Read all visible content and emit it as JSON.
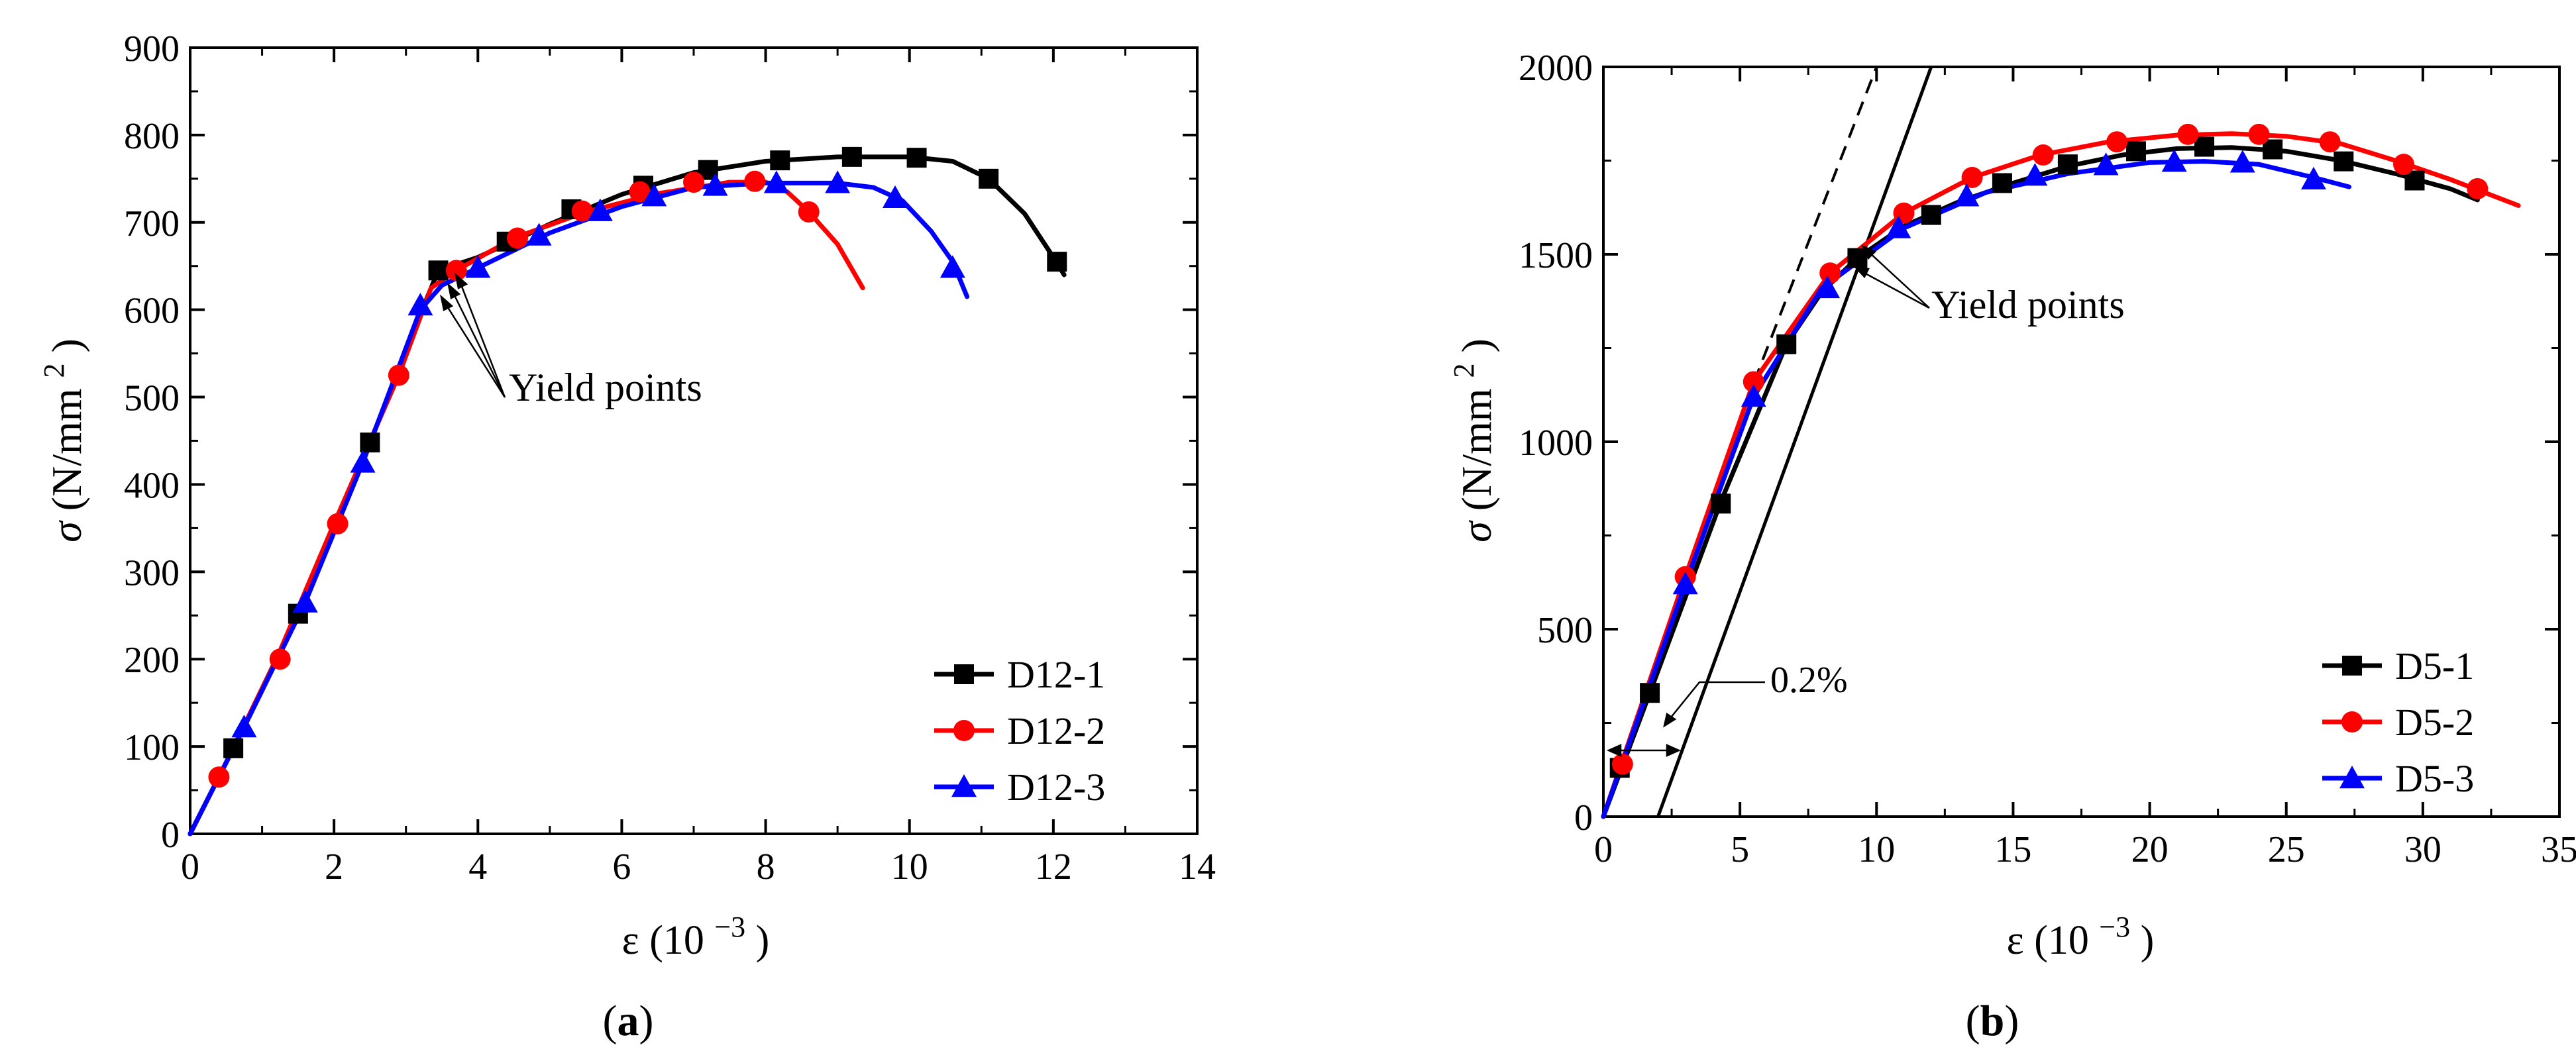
{
  "figure_labels": {
    "a_open": "(",
    "a_letter": "a",
    "a_close": ")",
    "b_open": "(",
    "b_letter": "b",
    "b_close": ")"
  },
  "colors": {
    "black": "#000000",
    "red": "#ff0000",
    "blue": "#0000ff"
  },
  "chart_data": [
    {
      "id": "a",
      "type": "line",
      "xlabel_prefix": "ε (10",
      "xlabel_exp": "−3",
      "xlabel_suffix": ")",
      "ylabel_sym": "σ",
      "ylabel_unit": "(N/mm",
      "ylabel_exp": "2",
      "ylabel_close": ")",
      "xlim": [
        0,
        14
      ],
      "ylim": [
        0,
        900
      ],
      "xticks": [
        0,
        2,
        4,
        6,
        8,
        10,
        12,
        14
      ],
      "yticks": [
        0,
        100,
        200,
        300,
        400,
        500,
        600,
        700,
        800,
        900
      ],
      "annotation": "Yield points",
      "legend_position": "bottom-right",
      "series": [
        {
          "name": "D12-1",
          "color": "#000000",
          "marker": "square",
          "curve": [
            [
              0,
              0
            ],
            [
              0.6,
              98
            ],
            [
              1.5,
              252
            ],
            [
              2.5,
              448
            ],
            [
              3.3,
              615
            ],
            [
              3.45,
              645
            ],
            [
              4,
              660
            ],
            [
              5,
              698
            ],
            [
              6,
              732
            ],
            [
              7,
              757
            ],
            [
              8,
              770
            ],
            [
              9,
              775
            ],
            [
              10,
              775
            ],
            [
              10.6,
              770
            ],
            [
              11.1,
              750
            ],
            [
              11.6,
              710
            ],
            [
              12,
              660
            ],
            [
              12.15,
              640
            ]
          ],
          "markers": [
            [
              0.6,
              98
            ],
            [
              1.5,
              252
            ],
            [
              2.5,
              448
            ],
            [
              3.45,
              645
            ],
            [
              4.4,
              678
            ],
            [
              5.3,
              715
            ],
            [
              6.3,
              742
            ],
            [
              7.2,
              760
            ],
            [
              8.2,
              771
            ],
            [
              9.2,
              775
            ],
            [
              10.1,
              774
            ],
            [
              11.1,
              750
            ],
            [
              12.05,
              655
            ]
          ]
        },
        {
          "name": "D12-2",
          "color": "#ff0000",
          "marker": "circle",
          "curve": [
            [
              0,
              0
            ],
            [
              0.4,
              65
            ],
            [
              1.2,
              200
            ],
            [
              2,
              355
            ],
            [
              2.9,
              525
            ],
            [
              3.35,
              625
            ],
            [
              3.7,
              645
            ],
            [
              4.5,
              682
            ],
            [
              5.5,
              712
            ],
            [
              6.5,
              733
            ],
            [
              7.5,
              746
            ],
            [
              8,
              746
            ],
            [
              8.3,
              735
            ],
            [
              8.6,
              712
            ],
            [
              9,
              675
            ],
            [
              9.35,
              625
            ]
          ],
          "markers": [
            [
              0.4,
              65
            ],
            [
              1.25,
              200
            ],
            [
              2.05,
              355
            ],
            [
              2.9,
              525
            ],
            [
              3.7,
              645
            ],
            [
              4.55,
              682
            ],
            [
              5.45,
              713
            ],
            [
              6.25,
              735
            ],
            [
              7,
              746
            ],
            [
              7.85,
              747
            ],
            [
              8.6,
              712
            ]
          ]
        },
        {
          "name": "D12-3",
          "color": "#0000ff",
          "marker": "triangle",
          "curve": [
            [
              0,
              0
            ],
            [
              0.75,
              122
            ],
            [
              1.6,
              265
            ],
            [
              2.4,
              425
            ],
            [
              3.2,
              600
            ],
            [
              3.5,
              628
            ],
            [
              4,
              648
            ],
            [
              5,
              688
            ],
            [
              6,
              718
            ],
            [
              7,
              740
            ],
            [
              8,
              745
            ],
            [
              9,
              745
            ],
            [
              9.5,
              740
            ],
            [
              9.9,
              725
            ],
            [
              10.3,
              690
            ],
            [
              10.6,
              655
            ],
            [
              10.8,
              615
            ]
          ],
          "markers": [
            [
              0.75,
              122
            ],
            [
              1.6,
              265
            ],
            [
              2.4,
              425
            ],
            [
              3.2,
              605
            ],
            [
              4,
              648
            ],
            [
              4.85,
              685
            ],
            [
              5.7,
              713
            ],
            [
              6.45,
              730
            ],
            [
              7.3,
              742
            ],
            [
              8.15,
              745
            ],
            [
              9,
              745
            ],
            [
              9.8,
              728
            ],
            [
              10.6,
              648
            ]
          ]
        }
      ]
    },
    {
      "id": "b",
      "type": "line",
      "xlabel_prefix": "ε (10",
      "xlabel_exp": "−3",
      "xlabel_suffix": ")",
      "ylabel_sym": "σ",
      "ylabel_unit": "(N/mm",
      "ylabel_exp": "2",
      "ylabel_close": ")",
      "xlim": [
        0,
        35
      ],
      "ylim": [
        0,
        2000
      ],
      "xticks": [
        0,
        5,
        10,
        15,
        20,
        25,
        30,
        35
      ],
      "yticks": [
        0,
        500,
        1000,
        1500,
        2000
      ],
      "annotation": "Yield points",
      "offset_label": "0.2%",
      "legend_position": "bottom-right",
      "offset_line": [
        [
          2,
          0
        ],
        [
          12,
          2000
        ]
      ],
      "dashed_line": [
        [
          5.2,
          1100
        ],
        [
          10,
          2000
        ]
      ],
      "series": [
        {
          "name": "D5-1",
          "color": "#000000",
          "marker": "square",
          "curve": [
            [
              0,
              0
            ],
            [
              1.7,
              330
            ],
            [
              4.3,
              840
            ],
            [
              6.7,
              1260
            ],
            [
              8,
              1400
            ],
            [
              9.3,
              1490
            ],
            [
              11,
              1575
            ],
            [
              13,
              1640
            ],
            [
              15,
              1690
            ],
            [
              17,
              1735
            ],
            [
              19,
              1765
            ],
            [
              21,
              1782
            ],
            [
              23,
              1785
            ],
            [
              25,
              1775
            ],
            [
              27,
              1750
            ],
            [
              29,
              1715
            ],
            [
              31,
              1675
            ],
            [
              32,
              1645
            ]
          ],
          "markers": [
            [
              0.6,
              130
            ],
            [
              1.7,
              330
            ],
            [
              4.3,
              835
            ],
            [
              6.7,
              1260
            ],
            [
              9.3,
              1490
            ],
            [
              12,
              1605
            ],
            [
              14.6,
              1690
            ],
            [
              17,
              1740
            ],
            [
              19.5,
              1775
            ],
            [
              22,
              1787
            ],
            [
              24.5,
              1780
            ],
            [
              27.1,
              1748
            ],
            [
              29.7,
              1697
            ]
          ]
        },
        {
          "name": "D5-2",
          "color": "#ff0000",
          "marker": "circle",
          "curve": [
            [
              0,
              0
            ],
            [
              0.7,
              150
            ],
            [
              3,
              640
            ],
            [
              5.5,
              1160
            ],
            [
              8.3,
              1450
            ],
            [
              11,
              1610
            ],
            [
              13.5,
              1705
            ],
            [
              16,
              1765
            ],
            [
              18.5,
              1800
            ],
            [
              21,
              1818
            ],
            [
              23,
              1822
            ],
            [
              25,
              1815
            ],
            [
              27,
              1795
            ],
            [
              29,
              1750
            ],
            [
              31,
              1700
            ],
            [
              33.5,
              1630
            ]
          ],
          "markers": [
            [
              0.7,
              140
            ],
            [
              3,
              640
            ],
            [
              5.5,
              1160
            ],
            [
              8.3,
              1450
            ],
            [
              11,
              1610
            ],
            [
              13.5,
              1705
            ],
            [
              16.1,
              1765
            ],
            [
              18.8,
              1800
            ],
            [
              21.4,
              1820
            ],
            [
              24,
              1820
            ],
            [
              26.6,
              1800
            ],
            [
              29.3,
              1740
            ],
            [
              32,
              1675
            ]
          ]
        },
        {
          "name": "D5-3",
          "color": "#0000ff",
          "marker": "triangle",
          "curve": [
            [
              0,
              0
            ],
            [
              3,
              620
            ],
            [
              5.5,
              1120
            ],
            [
              8,
              1410
            ],
            [
              11,
              1570
            ],
            [
              14,
              1665
            ],
            [
              17,
              1715
            ],
            [
              20,
              1745
            ],
            [
              22,
              1748
            ],
            [
              24,
              1740
            ],
            [
              26,
              1705
            ],
            [
              27.3,
              1680
            ]
          ],
          "markers": [
            [
              3,
              620
            ],
            [
              5.5,
              1120
            ],
            [
              8.2,
              1410
            ],
            [
              10.8,
              1570
            ],
            [
              13.3,
              1655
            ],
            [
              15.8,
              1710
            ],
            [
              18.4,
              1738
            ],
            [
              20.9,
              1747
            ],
            [
              23.4,
              1745
            ],
            [
              26,
              1700
            ]
          ]
        }
      ]
    }
  ]
}
